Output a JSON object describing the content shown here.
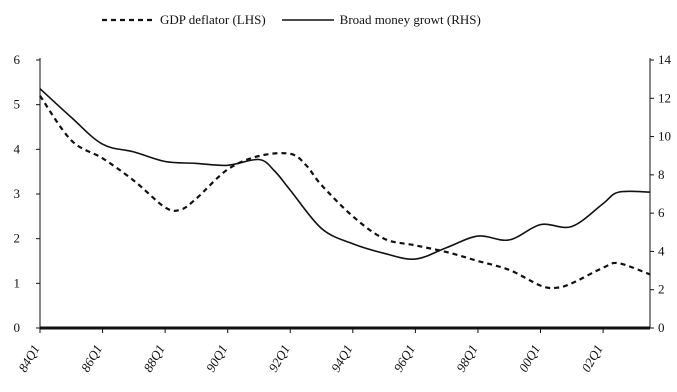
{
  "chart_data": {
    "type": "line",
    "title": "",
    "xlabel": "",
    "ylabel_left": "",
    "ylabel_right": "",
    "legend_position": "top",
    "grid": false,
    "ylim_left": [
      0,
      6
    ],
    "ylim_right": [
      0,
      14
    ],
    "yticks_left": [
      "0",
      "1",
      "2",
      "3",
      "4",
      "5",
      "6"
    ],
    "yticks_right": [
      "0",
      "2",
      "4",
      "6",
      "8",
      "10",
      "12",
      "14"
    ],
    "x_start": "1984Q1",
    "x_end": "2003Q3",
    "xtick_labels": [
      "84Q1",
      "86Q1",
      "88Q1",
      "90Q1",
      "92Q1",
      "94Q1",
      "96Q1",
      "98Q1",
      "00Q1",
      "02Q1"
    ],
    "series": [
      {
        "name": "GDP deflator (LHS)",
        "axis": "left",
        "style": "dashed",
        "color": "#111111",
        "points": [
          [
            "1984Q1",
            5.2
          ],
          [
            "1985Q1",
            4.2
          ],
          [
            "1986Q1",
            3.8
          ],
          [
            "1987Q1",
            3.3
          ],
          [
            "1988Q1",
            2.7
          ],
          [
            "1988Q3",
            2.65
          ],
          [
            "1989Q1",
            2.9
          ],
          [
            "1990Q1",
            3.55
          ],
          [
            "1991Q1",
            3.85
          ],
          [
            "1992Q1",
            3.9
          ],
          [
            "1992Q3",
            3.65
          ],
          [
            "1993Q1",
            3.2
          ],
          [
            "1994Q1",
            2.5
          ],
          [
            "1995Q1",
            2.0
          ],
          [
            "1996Q1",
            1.85
          ],
          [
            "1997Q1",
            1.7
          ],
          [
            "1998Q1",
            1.5
          ],
          [
            "1999Q1",
            1.3
          ],
          [
            "2000Q1",
            0.95
          ],
          [
            "2000Q3",
            0.9
          ],
          [
            "2001Q1",
            1.0
          ],
          [
            "2002Q1",
            1.35
          ],
          [
            "2002Q3",
            1.45
          ],
          [
            "2003Q3",
            1.2
          ]
        ]
      },
      {
        "name": "Broad money growt (RHS)",
        "axis": "right",
        "style": "solid",
        "color": "#111111",
        "points": [
          [
            "1984Q1",
            12.5
          ],
          [
            "1985Q1",
            11.0
          ],
          [
            "1986Q1",
            9.6
          ],
          [
            "1987Q1",
            9.2
          ],
          [
            "1988Q1",
            8.7
          ],
          [
            "1989Q1",
            8.6
          ],
          [
            "1990Q1",
            8.5
          ],
          [
            "1991Q1",
            8.8
          ],
          [
            "1991Q3",
            8.2
          ],
          [
            "1992Q1",
            7.2
          ],
          [
            "1993Q1",
            5.2
          ],
          [
            "1994Q1",
            4.4
          ],
          [
            "1995Q1",
            3.9
          ],
          [
            "1996Q1",
            3.6
          ],
          [
            "1997Q1",
            4.2
          ],
          [
            "1998Q1",
            4.8
          ],
          [
            "1999Q1",
            4.6
          ],
          [
            "2000Q1",
            5.4
          ],
          [
            "2001Q1",
            5.3
          ],
          [
            "2002Q1",
            6.5
          ],
          [
            "2002Q3",
            7.1
          ],
          [
            "2003Q3",
            7.1
          ]
        ]
      }
    ]
  }
}
